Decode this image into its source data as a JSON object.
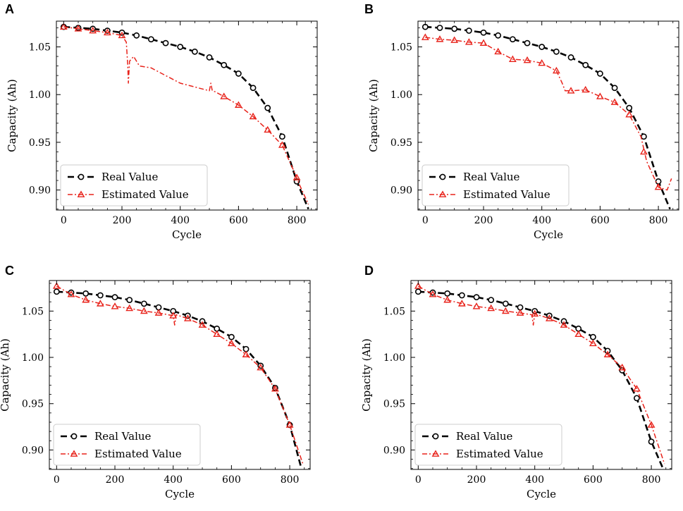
{
  "colors": {
    "real": "#000000",
    "estimated": "#e8231b",
    "frame": "#000000",
    "legend_border": "#cccccc"
  },
  "chart_data": [
    {
      "panel": "A",
      "type": "line",
      "xlabel": "Cycle",
      "ylabel": "Capacity (Ah)",
      "xlim": [
        -25,
        870
      ],
      "ylim": [
        0.879,
        1.077
      ],
      "xticks": [
        0,
        200,
        400,
        600,
        800
      ],
      "xtick_labels": [
        "0",
        "200",
        "400",
        "600",
        "800"
      ],
      "yticks": [
        0.9,
        0.95,
        1.0,
        1.05
      ],
      "ytick_labels": [
        "0.90",
        "0.95",
        "1.00",
        "1.05"
      ],
      "legend": [
        "Real Value",
        "Estimated Value"
      ],
      "legend_location": "lower-left",
      "series": [
        {
          "name": "Real Value",
          "style": "dashed-circle",
          "x": [
            0,
            50,
            100,
            150,
            200,
            250,
            300,
            350,
            400,
            450,
            500,
            550,
            600,
            650,
            700,
            750,
            800,
            840
          ],
          "y": [
            1.071,
            1.07,
            1.069,
            1.067,
            1.065,
            1.062,
            1.058,
            1.054,
            1.05,
            1.045,
            1.039,
            1.031,
            1.022,
            1.007,
            0.986,
            0.956,
            0.909,
            0.88
          ],
          "markers_x": [
            0,
            50,
            100,
            150,
            200,
            250,
            300,
            350,
            400,
            450,
            500,
            550,
            600,
            650,
            700,
            750,
            800
          ],
          "markers_y": [
            1.071,
            1.07,
            1.069,
            1.067,
            1.065,
            1.062,
            1.058,
            1.054,
            1.05,
            1.045,
            1.039,
            1.031,
            1.022,
            1.007,
            0.986,
            0.956,
            0.909
          ]
        },
        {
          "name": "Estimated Value",
          "style": "dashdot-triangle",
          "x": [
            0,
            50,
            100,
            150,
            200,
            215,
            220,
            222,
            226,
            240,
            260,
            300,
            350,
            400,
            450,
            500,
            505,
            510,
            520,
            550,
            600,
            650,
            700,
            750,
            790,
            810,
            840
          ],
          "y": [
            1.071,
            1.069,
            1.067,
            1.065,
            1.062,
            1.055,
            1.03,
            1.012,
            1.035,
            1.04,
            1.03,
            1.028,
            1.02,
            1.012,
            1.008,
            1.004,
            1.012,
            1.004,
            1.003,
            0.998,
            0.989,
            0.977,
            0.963,
            0.947,
            0.92,
            0.905,
            0.885
          ],
          "markers_x": [
            0,
            50,
            100,
            150,
            200,
            550,
            600,
            650,
            700,
            750,
            800
          ],
          "markers_y": [
            1.071,
            1.069,
            1.067,
            1.065,
            1.062,
            0.998,
            0.989,
            0.977,
            0.963,
            0.947,
            0.913
          ]
        }
      ]
    },
    {
      "panel": "B",
      "type": "line",
      "xlabel": "Cycle",
      "ylabel": "Capacity (Ah)",
      "xlim": [
        -25,
        870
      ],
      "ylim": [
        0.879,
        1.077
      ],
      "xticks": [
        0,
        200,
        400,
        600,
        800
      ],
      "xtick_labels": [
        "0",
        "200",
        "400",
        "600",
        "800"
      ],
      "yticks": [
        0.9,
        0.95,
        1.0,
        1.05
      ],
      "ytick_labels": [
        "0.90",
        "0.95",
        "1.00",
        "1.05"
      ],
      "legend": [
        "Real Value",
        "Estimated Value"
      ],
      "legend_location": "lower-left",
      "series": [
        {
          "name": "Real Value",
          "style": "dashed-circle",
          "x": [
            0,
            50,
            100,
            150,
            200,
            250,
            300,
            350,
            400,
            450,
            500,
            550,
            600,
            650,
            700,
            750,
            800,
            840
          ],
          "y": [
            1.071,
            1.07,
            1.069,
            1.067,
            1.065,
            1.062,
            1.058,
            1.054,
            1.05,
            1.045,
            1.039,
            1.031,
            1.022,
            1.007,
            0.986,
            0.956,
            0.909,
            0.88
          ],
          "markers_x": [
            0,
            50,
            100,
            150,
            200,
            250,
            300,
            350,
            400,
            450,
            500,
            550,
            600,
            650,
            700,
            750,
            800
          ],
          "markers_y": [
            1.071,
            1.07,
            1.069,
            1.067,
            1.065,
            1.062,
            1.058,
            1.054,
            1.05,
            1.045,
            1.039,
            1.031,
            1.022,
            1.007,
            0.986,
            0.956,
            0.909
          ]
        },
        {
          "name": "Estimated Value",
          "style": "dashdot-triangle",
          "x": [
            0,
            50,
            100,
            150,
            200,
            250,
            300,
            350,
            400,
            450,
            470,
            480,
            500,
            550,
            600,
            650,
            700,
            740,
            760,
            800,
            830,
            845
          ],
          "y": [
            1.06,
            1.058,
            1.057,
            1.055,
            1.054,
            1.045,
            1.037,
            1.036,
            1.033,
            1.025,
            1.012,
            1.004,
            1.004,
            1.005,
            0.998,
            0.992,
            0.979,
            0.956,
            0.93,
            0.903,
            0.9,
            0.912
          ],
          "markers_x": [
            0,
            50,
            100,
            150,
            200,
            250,
            300,
            350,
            400,
            450,
            500,
            550,
            600,
            650,
            700,
            750,
            800
          ],
          "markers_y": [
            1.06,
            1.058,
            1.057,
            1.055,
            1.054,
            1.045,
            1.037,
            1.036,
            1.033,
            1.025,
            1.004,
            1.005,
            0.998,
            0.992,
            0.979,
            0.94,
            0.903
          ]
        }
      ]
    },
    {
      "panel": "C",
      "type": "line",
      "xlabel": "Cycle",
      "ylabel": "Capacity (Ah)",
      "xlim": [
        -25,
        870
      ],
      "ylim": [
        0.879,
        1.083
      ],
      "xticks": [
        0,
        200,
        400,
        600,
        800
      ],
      "xtick_labels": [
        "0",
        "200",
        "400",
        "600",
        "800"
      ],
      "yticks": [
        0.9,
        0.95,
        1.0,
        1.05
      ],
      "ytick_labels": [
        "0.90",
        "0.95",
        "1.00",
        "1.05"
      ],
      "legend": [
        "Real Value",
        "Estimated Value"
      ],
      "legend_location": "lower-left",
      "series": [
        {
          "name": "Real Value",
          "style": "dashed-circle",
          "x": [
            0,
            50,
            100,
            150,
            200,
            250,
            300,
            350,
            400,
            450,
            500,
            550,
            600,
            650,
            700,
            750,
            800,
            840
          ],
          "y": [
            1.071,
            1.07,
            1.069,
            1.067,
            1.065,
            1.062,
            1.058,
            1.054,
            1.05,
            1.045,
            1.039,
            1.031,
            1.022,
            1.009,
            0.991,
            0.967,
            0.927,
            0.88
          ],
          "markers_x": [
            0,
            50,
            100,
            150,
            200,
            250,
            300,
            350,
            400,
            450,
            500,
            550,
            600,
            650,
            700,
            750,
            800
          ],
          "markers_y": [
            1.071,
            1.07,
            1.069,
            1.067,
            1.065,
            1.062,
            1.058,
            1.054,
            1.05,
            1.045,
            1.039,
            1.031,
            1.022,
            1.009,
            0.991,
            0.967,
            0.927
          ]
        },
        {
          "name": "Estimated Value",
          "style": "dashdot-triangle",
          "x": [
            0,
            50,
            100,
            150,
            200,
            250,
            300,
            350,
            400,
            405,
            410,
            450,
            500,
            550,
            600,
            650,
            700,
            750,
            800,
            845
          ],
          "y": [
            1.077,
            1.068,
            1.062,
            1.058,
            1.055,
            1.053,
            1.05,
            1.048,
            1.045,
            1.035,
            1.046,
            1.042,
            1.035,
            1.025,
            1.015,
            1.003,
            0.989,
            0.966,
            0.927,
            0.885
          ],
          "markers_x": [
            0,
            50,
            100,
            150,
            200,
            250,
            300,
            350,
            400,
            450,
            500,
            550,
            600,
            650,
            700,
            750,
            800
          ],
          "markers_y": [
            1.077,
            1.068,
            1.062,
            1.058,
            1.055,
            1.053,
            1.05,
            1.048,
            1.045,
            1.042,
            1.035,
            1.025,
            1.015,
            1.003,
            0.989,
            0.966,
            0.927
          ]
        }
      ]
    },
    {
      "panel": "D",
      "type": "line",
      "xlabel": "Cycle",
      "ylabel": "Capacity (Ah)",
      "xlim": [
        -25,
        870
      ],
      "ylim": [
        0.879,
        1.083
      ],
      "xticks": [
        0,
        200,
        400,
        600,
        800
      ],
      "xtick_labels": [
        "0",
        "200",
        "400",
        "600",
        "800"
      ],
      "yticks": [
        0.9,
        0.95,
        1.0,
        1.05
      ],
      "ytick_labels": [
        "0.90",
        "0.95",
        "1.00",
        "1.05"
      ],
      "legend": [
        "Real Value",
        "Estimated Value"
      ],
      "legend_location": "lower-left",
      "series": [
        {
          "name": "Real Value",
          "style": "dashed-circle",
          "x": [
            0,
            50,
            100,
            150,
            200,
            250,
            300,
            350,
            400,
            450,
            500,
            550,
            600,
            650,
            700,
            750,
            800,
            840
          ],
          "y": [
            1.071,
            1.07,
            1.069,
            1.067,
            1.065,
            1.062,
            1.058,
            1.054,
            1.05,
            1.045,
            1.039,
            1.031,
            1.022,
            1.007,
            0.986,
            0.956,
            0.909,
            0.88
          ],
          "markers_x": [
            0,
            50,
            100,
            150,
            200,
            250,
            300,
            350,
            400,
            450,
            500,
            550,
            600,
            650,
            700,
            750,
            800
          ],
          "markers_y": [
            1.071,
            1.07,
            1.069,
            1.067,
            1.065,
            1.062,
            1.058,
            1.054,
            1.05,
            1.045,
            1.039,
            1.031,
            1.022,
            1.007,
            0.986,
            0.956,
            0.909
          ]
        },
        {
          "name": "Estimated Value",
          "style": "dashdot-triangle",
          "x": [
            0,
            50,
            100,
            150,
            200,
            250,
            300,
            350,
            390,
            395,
            400,
            450,
            500,
            550,
            600,
            650,
            700,
            750,
            800,
            845
          ],
          "y": [
            1.077,
            1.068,
            1.062,
            1.058,
            1.055,
            1.053,
            1.05,
            1.048,
            1.046,
            1.035,
            1.047,
            1.042,
            1.035,
            1.025,
            1.015,
            1.003,
            0.989,
            0.966,
            0.927,
            0.885
          ],
          "markers_x": [
            0,
            50,
            100,
            150,
            200,
            250,
            300,
            350,
            400,
            450,
            500,
            550,
            600,
            650,
            700,
            750,
            800
          ],
          "markers_y": [
            1.077,
            1.068,
            1.062,
            1.058,
            1.055,
            1.053,
            1.05,
            1.048,
            1.047,
            1.042,
            1.035,
            1.025,
            1.015,
            1.003,
            0.989,
            0.966,
            0.927
          ]
        }
      ]
    }
  ]
}
